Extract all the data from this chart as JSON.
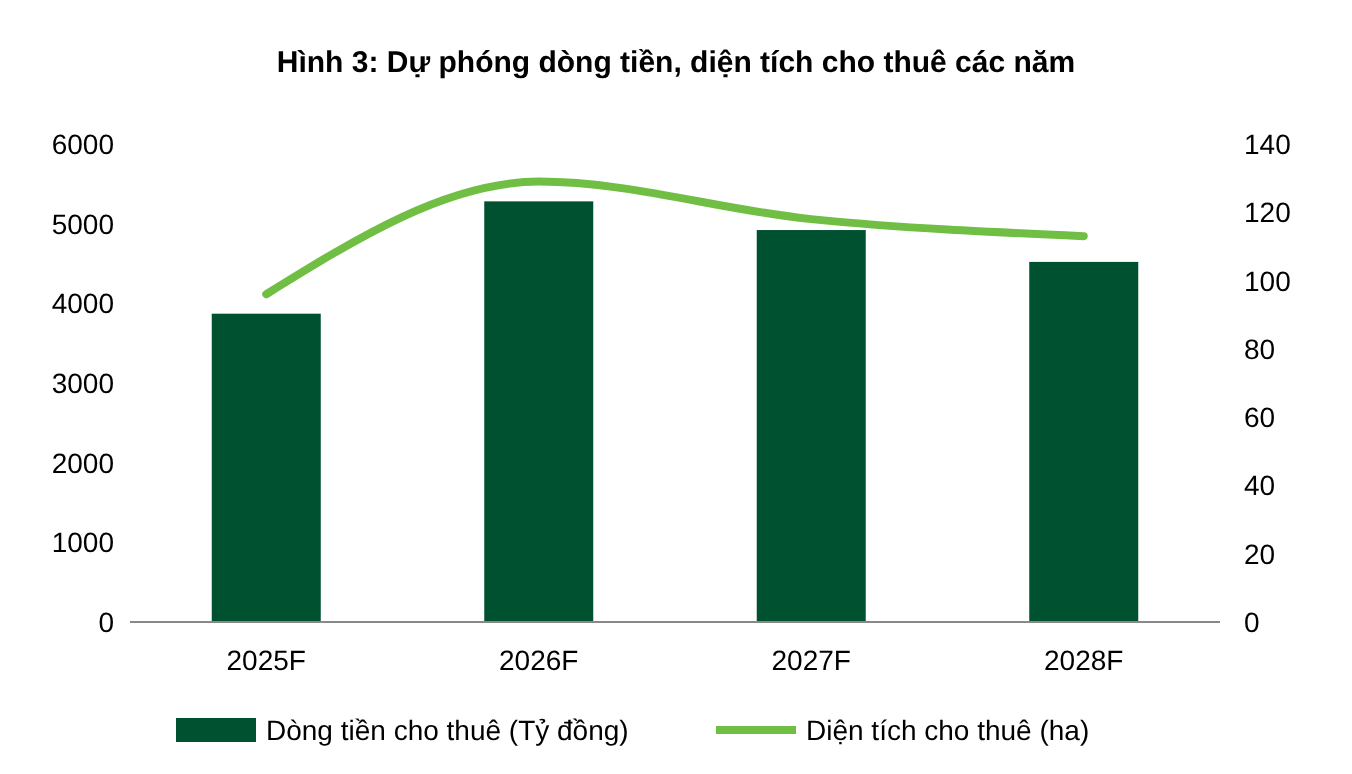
{
  "chart_data": {
    "type": "bar",
    "title": "Hình 3: Dự phóng dòng tiền, diện tích cho thuê các năm",
    "categories": [
      "2025F",
      "2026F",
      "2027F",
      "2028F"
    ],
    "series": [
      {
        "name": "Dòng tiền cho thuê (Tỷ đồng)",
        "color": "#00512f",
        "values": [
          3870,
          5280,
          4920,
          4520
        ]
      },
      {
        "name": "Diện tích cho thuê (ha)",
        "type": "line",
        "axis": "y2",
        "color": "#70bf44",
        "values": [
          96,
          129,
          118,
          113
        ]
      }
    ],
    "ylim": [
      0,
      6000
    ],
    "yticks": [
      0,
      1000,
      2000,
      3000,
      4000,
      5000,
      6000
    ],
    "y2lim": [
      0,
      140
    ],
    "y2ticks": [
      0,
      20,
      40,
      60,
      80,
      100,
      120,
      140
    ],
    "legend": "bottom",
    "grid": false
  }
}
